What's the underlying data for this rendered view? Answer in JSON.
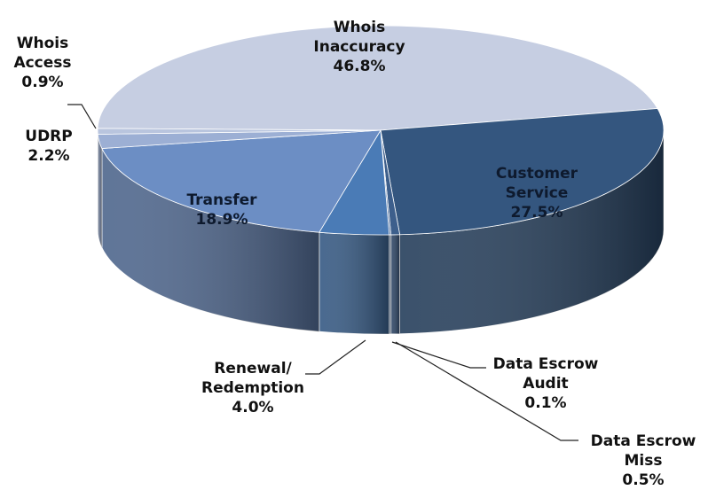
{
  "chart_data": {
    "type": "pie3d",
    "categories": [
      "Whois Inaccuracy",
      "Customer Service",
      "Data Escrow Miss",
      "Data Escrow Audit",
      "Renewal/ Redemption",
      "Transfer",
      "UDRP",
      "Whois Access"
    ],
    "values": [
      46.8,
      27.5,
      0.5,
      0.1,
      4.0,
      18.9,
      2.2,
      0.9
    ],
    "value_labels": [
      "46.8%",
      "27.5%",
      "0.5%",
      "0.1%",
      "4.0%",
      "18.9%",
      "2.2%",
      "0.9%"
    ],
    "colors": [
      "#c6cee2",
      "#34567f",
      "#3d5f8c",
      "#46689a",
      "#4a7bb6",
      "#6c8ec4",
      "#9cafd4",
      "#b9c5de"
    ]
  }
}
